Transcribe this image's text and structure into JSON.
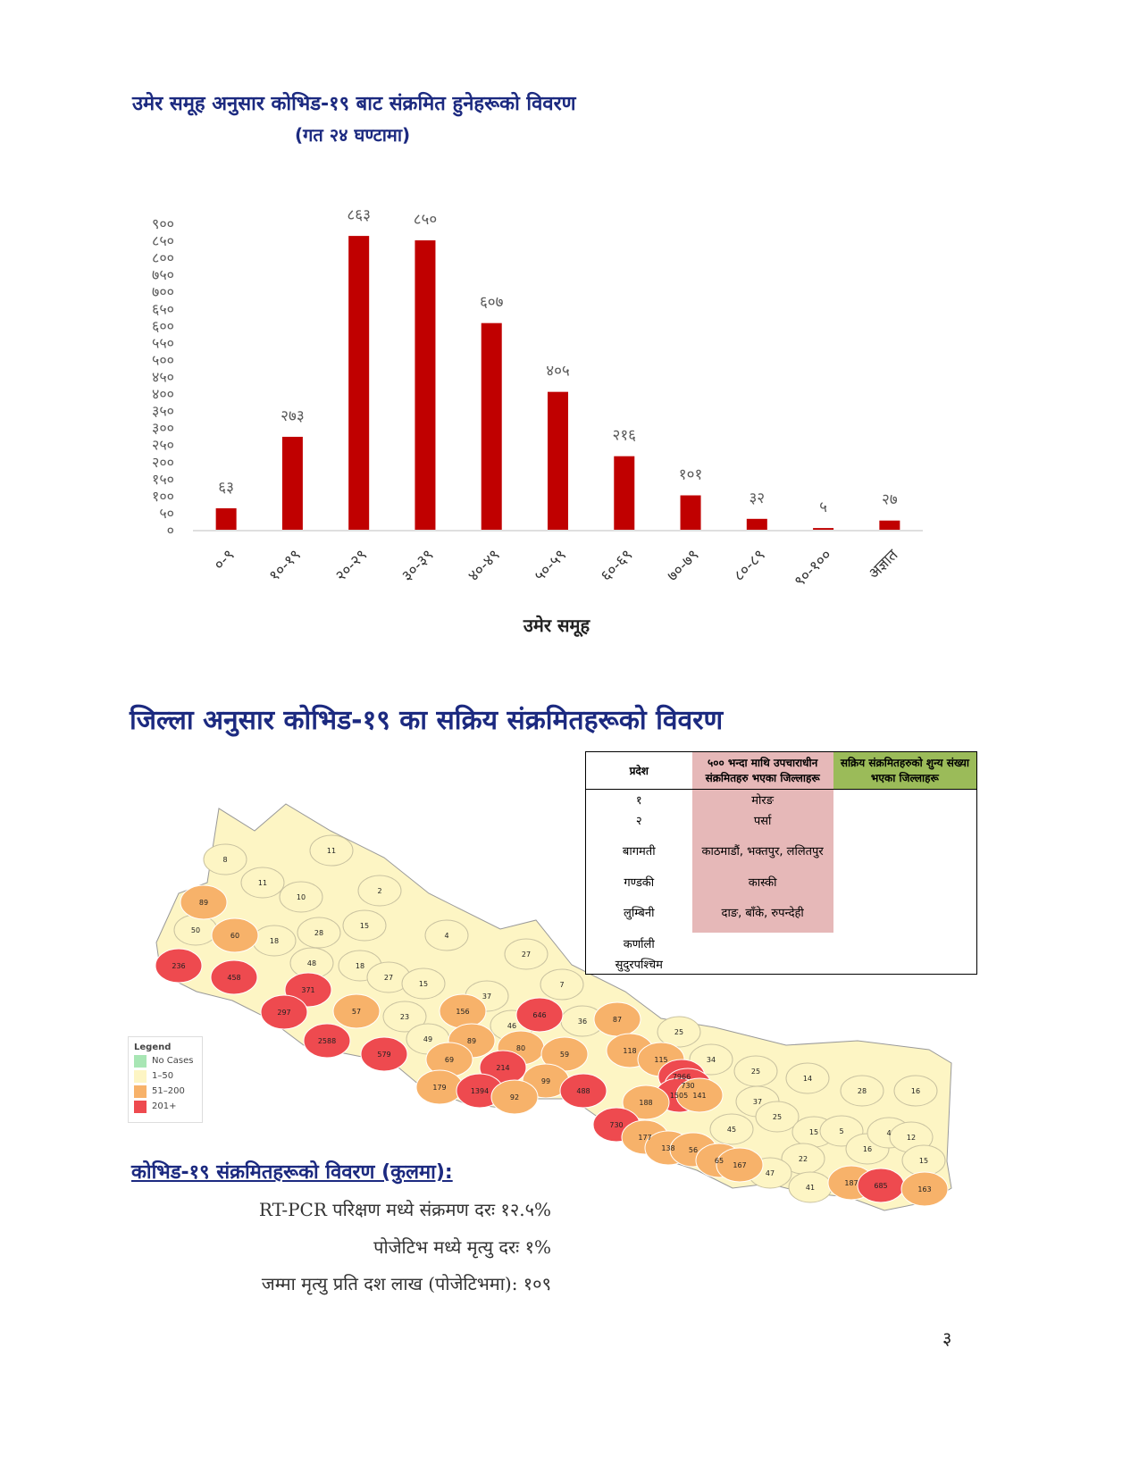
{
  "chart_data": {
    "type": "bar",
    "title": "उमेर समूह अनुसार कोभिड-१९ बाट संक्रमित हुनेहरूको विवरण",
    "subtitle": "(गत २४ घण्टामा)",
    "x_label": "उमेर समूह",
    "color": "#c00000",
    "grid": false,
    "categories": [
      "०-९",
      "१०-१९",
      "२०-२९",
      "३०-३९",
      "४०-४९",
      "५०-५९",
      "६०-६९",
      "७०-७९",
      "८०-८९",
      "९०-१००",
      "अज्ञात"
    ],
    "values": [
      63,
      273,
      863,
      850,
      607,
      405,
      216,
      101,
      32,
      5,
      27
    ],
    "value_labels": [
      "६३",
      "२७३",
      "८६३",
      "८५०",
      "६०७",
      "४०५",
      "२१६",
      "१०१",
      "३२",
      "५",
      "२७"
    ],
    "ylim": [
      0,
      900
    ],
    "yticks": [
      {
        "value": 0,
        "label": "०"
      },
      {
        "value": 50,
        "label": "५०"
      },
      {
        "value": 100,
        "label": "१००"
      },
      {
        "value": 150,
        "label": "१५०"
      },
      {
        "value": 200,
        "label": "२००"
      },
      {
        "value": 250,
        "label": "२५०"
      },
      {
        "value": 300,
        "label": "३००"
      },
      {
        "value": 350,
        "label": "३५०"
      },
      {
        "value": 400,
        "label": "४००"
      },
      {
        "value": 450,
        "label": "४५०"
      },
      {
        "value": 500,
        "label": "५००"
      },
      {
        "value": 550,
        "label": "५५०"
      },
      {
        "value": 600,
        "label": "६००"
      },
      {
        "value": 650,
        "label": "६५०"
      },
      {
        "value": 700,
        "label": "७००"
      },
      {
        "value": 750,
        "label": "७५०"
      },
      {
        "value": 800,
        "label": "८००"
      },
      {
        "value": 850,
        "label": "८५०"
      },
      {
        "value": 900,
        "label": "९००"
      }
    ]
  },
  "map": {
    "title": "जिल्ला अनुसार कोभिड-१९ का सक्रिय संक्रमितहरूको विवरण",
    "legend": {
      "title": "Legend",
      "items": [
        {
          "label": "No Cases",
          "color": "#a8e6b4"
        },
        {
          "label": "1–50",
          "color": "#fdf5c4"
        },
        {
          "label": "51–200",
          "color": "#f7b26a"
        },
        {
          "label": "201+",
          "color": "#ee4a4f"
        }
      ]
    },
    "districts": [
      {
        "value": 8,
        "color": "#fdf5c4"
      },
      {
        "value": 11,
        "color": "#fdf5c4"
      },
      {
        "value": 11,
        "color": "#fdf5c4"
      },
      {
        "value": 89,
        "color": "#f7b26a"
      },
      {
        "value": 10,
        "color": "#fdf5c4"
      },
      {
        "value": 2,
        "color": "#fdf5c4"
      },
      {
        "value": 50,
        "color": "#fdf5c4"
      },
      {
        "value": 60,
        "color": "#f7b26a"
      },
      {
        "value": 18,
        "color": "#fdf5c4"
      },
      {
        "value": 28,
        "color": "#fdf5c4"
      },
      {
        "value": 15,
        "color": "#fdf5c4"
      },
      {
        "value": 4,
        "color": "#fdf5c4"
      },
      {
        "value": 27,
        "color": "#fdf5c4"
      },
      {
        "value": 236,
        "color": "#ee4a4f"
      },
      {
        "value": 458,
        "color": "#ee4a4f"
      },
      {
        "value": 48,
        "color": "#fdf5c4"
      },
      {
        "value": 18,
        "color": "#fdf5c4"
      },
      {
        "value": 27,
        "color": "#fdf5c4"
      },
      {
        "value": 15,
        "color": "#fdf5c4"
      },
      {
        "value": 7,
        "color": "#fdf5c4"
      },
      {
        "value": 371,
        "color": "#ee4a4f"
      },
      {
        "value": 37,
        "color": "#fdf5c4"
      },
      {
        "value": 297,
        "color": "#ee4a4f"
      },
      {
        "value": 57,
        "color": "#f7b26a"
      },
      {
        "value": 156,
        "color": "#f7b26a"
      },
      {
        "value": 646,
        "color": "#ee4a4f"
      },
      {
        "value": 23,
        "color": "#fdf5c4"
      },
      {
        "value": 36,
        "color": "#fdf5c4"
      },
      {
        "value": 87,
        "color": "#f7b26a"
      },
      {
        "value": 46,
        "color": "#fdf5c4"
      },
      {
        "value": 2588,
        "color": "#ee4a4f"
      },
      {
        "value": 49,
        "color": "#fdf5c4"
      },
      {
        "value": 89,
        "color": "#f7b26a"
      },
      {
        "value": 80,
        "color": "#f7b26a"
      },
      {
        "value": 25,
        "color": "#fdf5c4"
      },
      {
        "value": 579,
        "color": "#ee4a4f"
      },
      {
        "value": 118,
        "color": "#f7b26a"
      },
      {
        "value": 59,
        "color": "#f7b26a"
      },
      {
        "value": 115,
        "color": "#f7b26a"
      },
      {
        "value": 34,
        "color": "#fdf5c4"
      },
      {
        "value": 69,
        "color": "#f7b26a"
      },
      {
        "value": 214,
        "color": "#ee4a4f"
      },
      {
        "value": 99,
        "color": "#f7b26a"
      },
      {
        "value": 25,
        "color": "#fdf5c4"
      },
      {
        "value": 14,
        "color": "#fdf5c4"
      },
      {
        "value": 179,
        "color": "#f7b26a"
      },
      {
        "value": 1394,
        "color": "#ee4a4f"
      },
      {
        "value": 92,
        "color": "#f7b26a"
      },
      {
        "value": 488,
        "color": "#ee4a4f"
      },
      {
        "value": 7966,
        "color": "#ee4a4f"
      },
      {
        "value": 730,
        "color": "#ee4a4f"
      },
      {
        "value": 1505,
        "color": "#ee4a4f"
      },
      {
        "value": 141,
        "color": "#f7b26a"
      },
      {
        "value": 188,
        "color": "#f7b26a"
      },
      {
        "value": 37,
        "color": "#fdf5c4"
      },
      {
        "value": 28,
        "color": "#fdf5c4"
      },
      {
        "value": 16,
        "color": "#fdf5c4"
      },
      {
        "value": 25,
        "color": "#fdf5c4"
      },
      {
        "value": 730,
        "color": "#ee4a4f"
      },
      {
        "value": 45,
        "color": "#fdf5c4"
      },
      {
        "value": 15,
        "color": "#fdf5c4"
      },
      {
        "value": 5,
        "color": "#fdf5c4"
      },
      {
        "value": 177,
        "color": "#f7b26a"
      },
      {
        "value": 138,
        "color": "#f7b26a"
      },
      {
        "value": 56,
        "color": "#f7b26a"
      },
      {
        "value": 16,
        "color": "#fdf5c4"
      },
      {
        "value": 4,
        "color": "#fdf5c4"
      },
      {
        "value": 12,
        "color": "#fdf5c4"
      },
      {
        "value": 65,
        "color": "#f7b26a"
      },
      {
        "value": 167,
        "color": "#f7b26a"
      },
      {
        "value": 22,
        "color": "#fdf5c4"
      },
      {
        "value": 15,
        "color": "#fdf5c4"
      },
      {
        "value": 47,
        "color": "#fdf5c4"
      },
      {
        "value": 187,
        "color": "#f7b26a"
      },
      {
        "value": 685,
        "color": "#ee4a4f"
      },
      {
        "value": 163,
        "color": "#f7b26a"
      },
      {
        "value": 41,
        "color": "#fdf5c4"
      }
    ]
  },
  "table": {
    "header": [
      "प्रदेश",
      "५०० भन्दा माथि उपचाराधीन संक्रमितहरु भएका जिल्लाहरू",
      "सक्रिय संक्रमितहरुको शुन्य संख्या भएका जिल्लाहरू"
    ],
    "rows": [
      [
        "१",
        "मोरङ"
      ],
      [
        "२",
        "पर्सा"
      ],
      [
        "बागमती",
        "काठमाडौं, भक्तपुर, ललितपुर"
      ],
      [
        "गण्डकी",
        "कास्की"
      ],
      [
        "लुम्बिनी",
        "दाङ, बाँके, रुपन्देही"
      ],
      [
        "कर्णाली"
      ],
      [
        "सुदुरपश्चिम"
      ]
    ]
  },
  "summary": {
    "title": "कोभिड-१९ संक्रमितहरूको  विवरण (कुलमा):",
    "lines": [
      "RT-PCR परिक्षण मध्ये संक्रमण दरः १२.५%",
      "पोजेटिभ मध्ये मृत्यु दरः १%",
      "जम्मा मृत्यु प्रति दश लाख (पोजेटिभमा): १०९"
    ]
  },
  "page_number": "३"
}
